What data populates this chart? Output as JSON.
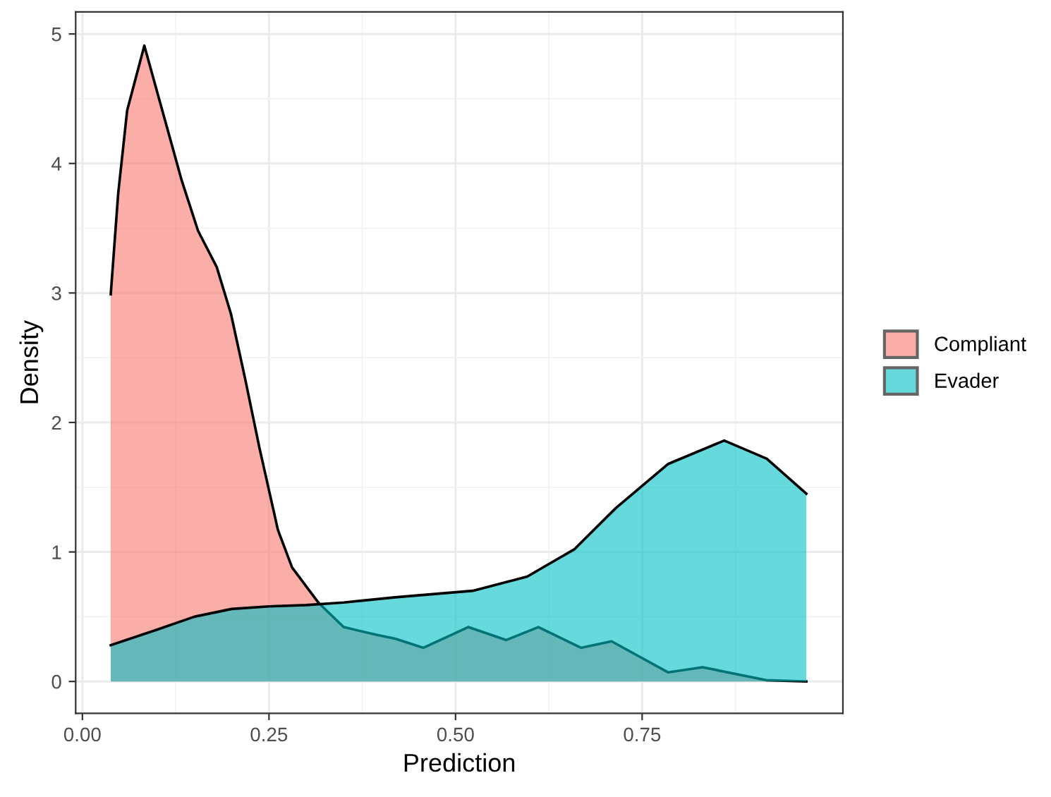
{
  "chart_data": {
    "type": "area",
    "xlabel": "Prediction",
    "ylabel": "Density",
    "xlim": [
      -0.009,
      1.019
    ],
    "ylim": [
      -0.246,
      5.17
    ],
    "xticks": [
      {
        "value": 0,
        "label": "0.00"
      },
      {
        "value": 0.25,
        "label": "0.25"
      },
      {
        "value": 0.5,
        "label": "0.50"
      },
      {
        "value": 0.75,
        "label": "0.75"
      }
    ],
    "yticks": [
      0,
      1,
      2,
      3,
      4,
      5
    ],
    "grid": true,
    "legend": "right",
    "series": [
      {
        "name": "Compliant",
        "color": "#f8766d",
        "x": [
          0.038,
          0.048,
          0.06,
          0.083,
          0.133,
          0.155,
          0.18,
          0.199,
          0.218,
          0.237,
          0.262,
          0.281,
          0.316,
          0.35,
          0.394,
          0.419,
          0.457,
          0.517,
          0.568,
          0.611,
          0.668,
          0.709,
          0.785,
          0.831,
          0.916,
          0.97
        ],
        "values": [
          2.99,
          3.77,
          4.41,
          4.91,
          3.87,
          3.48,
          3.2,
          2.84,
          2.34,
          1.81,
          1.17,
          0.88,
          0.61,
          0.42,
          0.36,
          0.33,
          0.26,
          0.42,
          0.32,
          0.42,
          0.26,
          0.31,
          0.07,
          0.11,
          0.01,
          0.0
        ]
      },
      {
        "name": "Evader",
        "color": "#00bfc4",
        "x": [
          0.038,
          0.1,
          0.15,
          0.2,
          0.25,
          0.3,
          0.35,
          0.419,
          0.523,
          0.596,
          0.659,
          0.715,
          0.785,
          0.86,
          0.917,
          0.97
        ],
        "values": [
          0.28,
          0.4,
          0.5,
          0.56,
          0.58,
          0.59,
          0.61,
          0.65,
          0.7,
          0.81,
          1.02,
          1.34,
          1.68,
          1.86,
          1.72,
          1.45
        ]
      }
    ]
  }
}
